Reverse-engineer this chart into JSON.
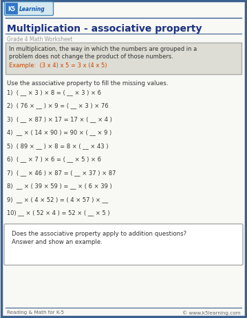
{
  "title": "Multiplication - associative property",
  "subtitle": "Grade 4 Math Worksheet",
  "info_box_line1": "In multiplication, the way in which the numbers are grouped in a",
  "info_box_line2": "problem does not change the product of those numbers.",
  "example_text": "Example:  (3 x 4) x 5 = 3 x (4 x 5)",
  "instruction": "Use the associative property to fill the missing values.",
  "problems": [
    "1)  ( __ × 3 ) × 8 = ( __ × 3 ) × 6",
    "2)  ( 76 × __ ) × 9 = ( __ × 3 ) × 76",
    "3)  ( __ × 87 ) × 17 = 17 × ( __ × 4 )",
    "4)  __ × ( 14 × 90 ) = 90 × ( __ × 9 )",
    "5)  ( 89 × __ ) × 8 = 8 × ( __ × 43 )",
    "6)  ( __ × 7 ) × 6 = ( __ × 5 ) × 6",
    "7)  ( __ × 46 ) × 87 = ( __ × 37 ) × 87",
    "8)  __ × ( 39 × 59 ) = __ × ( 6 × 39 )",
    "9)  __ × ( 4 × 52 ) = ( 4 × 57 ) × __",
    "10) __ × ( 52 × 4 ) = 52 × ( __ × 5 )"
  ],
  "bottom_box_line1": "Does the associative property apply to addition questions?",
  "bottom_box_line2": "Answer and show an example.",
  "footer_left": "Reading & Math for K-5",
  "footer_right": "© www.k5learning.com",
  "page_bg": "#f8f8f5",
  "border_color": "#3a6090",
  "title_color": "#1a3080",
  "info_box_bg": "#ddddd5",
  "info_box_border": "#aaaaaa",
  "example_color": "#cc4400",
  "text_color": "#333333",
  "footer_color": "#666666",
  "subtitle_color": "#999999",
  "logo_bg": "#d5e8f0",
  "logo_border": "#4488bb",
  "logo_text_color": "#1155aa",
  "bottom_box_bg": "#ffffff",
  "bottom_box_border": "#aaaaaa",
  "footer_line_color": "#3a6090",
  "header_line_color": "#3a6090",
  "title_line_color": "#3a6090"
}
